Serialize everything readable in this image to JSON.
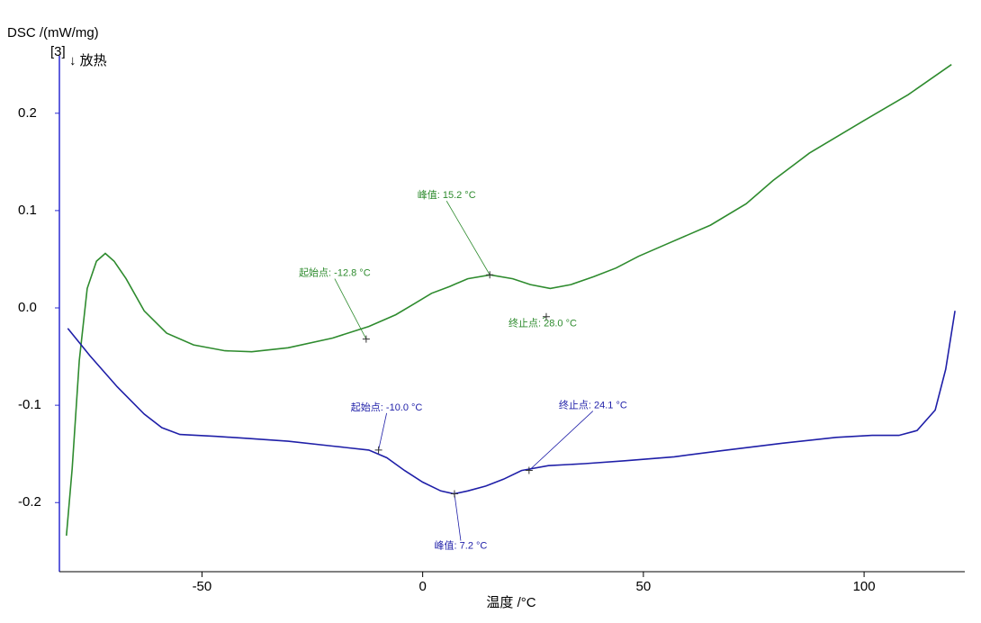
{
  "chart_data": {
    "type": "line",
    "y_label": "DSC /(mW/mg)",
    "y_label_tag": "[3]",
    "y_direction": "↓ 放热",
    "x_label": "温度 /°C",
    "xlim": [
      -82.3,
      122
    ],
    "ylim": [
      -0.271,
      0.259
    ],
    "xticks": [
      -50,
      0,
      50,
      100
    ],
    "yticks": [
      -0.2,
      -0.1,
      {
        "value": 0,
        "label": "0.0"
      },
      0.1,
      0.2
    ],
    "series": [
      {
        "color": "#2e8b2e",
        "x": [
          -80.7,
          -79.4,
          -77.8,
          -76,
          -73.9,
          -71.9,
          -69.9,
          -67.2,
          -63.1,
          -58,
          -51.9,
          -44.8,
          -38.7,
          -30.5,
          -20.4,
          -12.2,
          -6.1,
          -2,
          2,
          6.1,
          10.2,
          15.3,
          20.4,
          24.4,
          28.9,
          33.6,
          38.7,
          43.8,
          48.9,
          55,
          65.2,
          73.3,
          79.4,
          87.6,
          99.8,
          110,
          119.8
        ],
        "values": [
          -0.234,
          -0.165,
          -0.054,
          0.02,
          0.048,
          0.056,
          0.048,
          0.03,
          -0.003,
          -0.026,
          -0.038,
          -0.044,
          -0.045,
          -0.041,
          -0.031,
          -0.019,
          -0.007,
          0.004,
          0.015,
          0.022,
          0.03,
          0.034,
          0.03,
          0.024,
          0.02,
          0.024,
          0.032,
          0.041,
          0.053,
          0.065,
          0.085,
          0.107,
          0.131,
          0.159,
          0.192,
          0.219,
          0.25
        ],
        "annotations": [
          {
            "text": "峰值: 15.2 °C",
            "x": 15.2,
            "y": 0.034
          },
          {
            "text": "起始点: -12.8 °C",
            "x": -12.8,
            "y": -0.032
          },
          {
            "text": "终止点: 28.0 °C",
            "x": 28.0,
            "y": -0.009
          }
        ]
      },
      {
        "color": "#1f1fa8",
        "x": [
          -80.4,
          -75.4,
          -69.2,
          -63.1,
          -59.1,
          -55,
          -46.8,
          -39.7,
          -30.5,
          -20.4,
          -12.2,
          -8.1,
          -4.1,
          0,
          4.1,
          7.1,
          10.2,
          14.3,
          18.3,
          22.4,
          28.5,
          36.7,
          45.8,
          57,
          67.2,
          81.5,
          93.7,
          101.8,
          107.9,
          112,
          116.1,
          118.5,
          120.6
        ],
        "values": [
          -0.021,
          -0.049,
          -0.081,
          -0.109,
          -0.123,
          -0.13,
          -0.132,
          -0.134,
          -0.137,
          -0.142,
          -0.146,
          -0.154,
          -0.167,
          -0.179,
          -0.188,
          -0.191,
          -0.188,
          -0.183,
          -0.176,
          -0.167,
          -0.162,
          -0.16,
          -0.157,
          -0.153,
          -0.147,
          -0.139,
          -0.133,
          -0.131,
          -0.131,
          -0.126,
          -0.105,
          -0.063,
          -0.003
        ],
        "annotations": [
          {
            "text": "起始点: -10.0 °C",
            "x": -10.0,
            "y": -0.146
          },
          {
            "text": "终止点: 24.1 °C",
            "x": 24.1,
            "y": -0.167
          },
          {
            "text": "峰值: 7.2 °C",
            "x": 7.2,
            "y": -0.191
          }
        ]
      }
    ]
  }
}
